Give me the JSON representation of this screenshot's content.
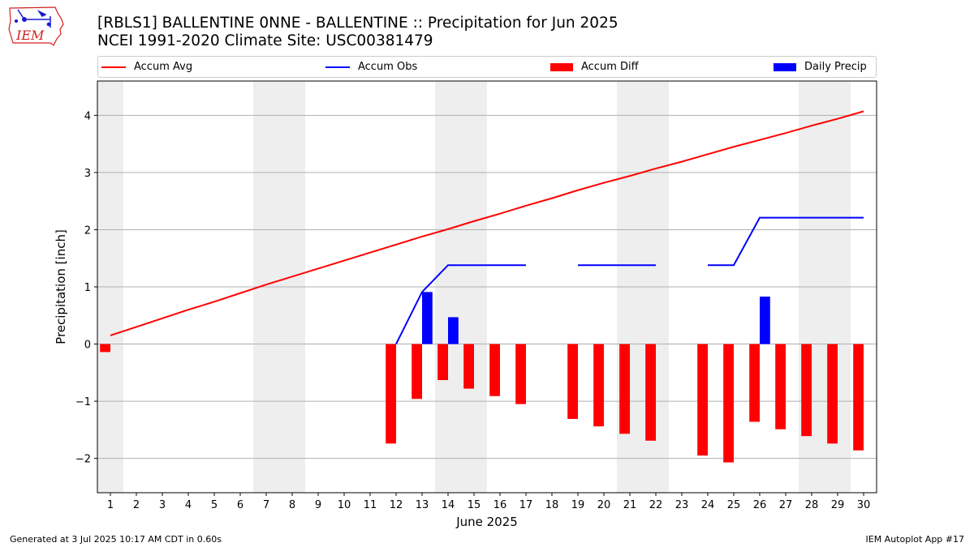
{
  "header": {
    "title_line1": "[RBLS1] BALLENTINE 0NNE - BALLENTINE :: Precipitation for Jun 2025",
    "title_line2": "NCEI 1991-2020 Climate Site: USC00381479"
  },
  "logo": {
    "text": "IEM",
    "icon": "iem-iowa-logo-icon",
    "color": "#d32020"
  },
  "legend": {
    "placement": "top",
    "items": [
      {
        "label": "Accum Avg",
        "kind": "line",
        "color": "#ff0000"
      },
      {
        "label": "Accum Obs",
        "kind": "line",
        "color": "#0000ff"
      },
      {
        "label": "Accum Diff",
        "kind": "patch",
        "color": "#ff0000"
      },
      {
        "label": "Daily Precip",
        "kind": "patch",
        "color": "#0000ff"
      }
    ]
  },
  "footer": {
    "left": "Generated at 3 Jul 2025 10:17 AM CDT in 0.60s",
    "right": "IEM Autoplot App #17"
  },
  "chart_data": {
    "type": "bar",
    "xlabel": "June 2025",
    "ylabel": "Precipitation [inch]",
    "xlim": [
      0.5,
      30.5
    ],
    "ylim": [
      -2.6,
      4.6
    ],
    "x_ticks": [
      1,
      2,
      3,
      4,
      5,
      6,
      7,
      8,
      9,
      10,
      11,
      12,
      13,
      14,
      15,
      16,
      17,
      18,
      19,
      20,
      21,
      22,
      23,
      24,
      25,
      26,
      27,
      28,
      29,
      30
    ],
    "y_ticks": [
      -2,
      -1,
      0,
      1,
      2,
      3,
      4
    ],
    "grid": "horizontal",
    "weekend_shading": [
      [
        0.5,
        1.5
      ],
      [
        6.5,
        8.5
      ],
      [
        13.5,
        15.5
      ],
      [
        20.5,
        22.5
      ],
      [
        27.5,
        29.5
      ]
    ],
    "colors": {
      "accum_avg": "#ff0000",
      "accum_obs": "#0000ff",
      "accum_diff": "#ff0000",
      "daily_precip": "#0000ff",
      "weekend": "#eeeeee",
      "grid": "#b0b0b0"
    },
    "series": [
      {
        "name": "Accum Avg",
        "kind": "line",
        "x": [
          1,
          2,
          3,
          4,
          5,
          6,
          7,
          8,
          9,
          10,
          11,
          12,
          13,
          14,
          15,
          16,
          17,
          18,
          19,
          20,
          21,
          22,
          23,
          24,
          25,
          26,
          27,
          28,
          29,
          30
        ],
        "values": [
          0.15,
          0.3,
          0.45,
          0.6,
          0.74,
          0.89,
          1.04,
          1.18,
          1.32,
          1.46,
          1.6,
          1.74,
          1.88,
          2.01,
          2.15,
          2.28,
          2.42,
          2.55,
          2.69,
          2.82,
          2.94,
          3.07,
          3.19,
          3.32,
          3.45,
          3.57,
          3.69,
          3.82,
          3.94,
          4.07
        ]
      },
      {
        "name": "Accum Obs",
        "kind": "line",
        "segments": [
          {
            "x": [
              12,
              13,
              14,
              15,
              16,
              17
            ],
            "values": [
              0.0,
              0.91,
              1.38,
              1.38,
              1.38,
              1.38
            ]
          },
          {
            "x": [
              19,
              20,
              21,
              22
            ],
            "values": [
              1.38,
              1.38,
              1.38,
              1.38
            ]
          },
          {
            "x": [
              24,
              25,
              26,
              27,
              28,
              29,
              30
            ],
            "values": [
              1.38,
              1.38,
              2.21,
              2.21,
              2.21,
              2.21,
              2.21
            ]
          }
        ]
      },
      {
        "name": "Accum Diff",
        "kind": "bar",
        "x": [
          1,
          12,
          13,
          14,
          15,
          16,
          17,
          19,
          20,
          21,
          22,
          24,
          25,
          26,
          27,
          28,
          29,
          30
        ],
        "values": [
          -0.14,
          -1.74,
          -0.96,
          -0.63,
          -0.78,
          -0.91,
          -1.05,
          -1.31,
          -1.44,
          -1.57,
          -1.69,
          -1.95,
          -2.07,
          -1.36,
          -1.49,
          -1.61,
          -1.74,
          -1.86
        ]
      },
      {
        "name": "Daily Precip",
        "kind": "bar",
        "x": [
          13,
          14,
          26
        ],
        "values": [
          0.91,
          0.47,
          0.83
        ]
      }
    ]
  }
}
